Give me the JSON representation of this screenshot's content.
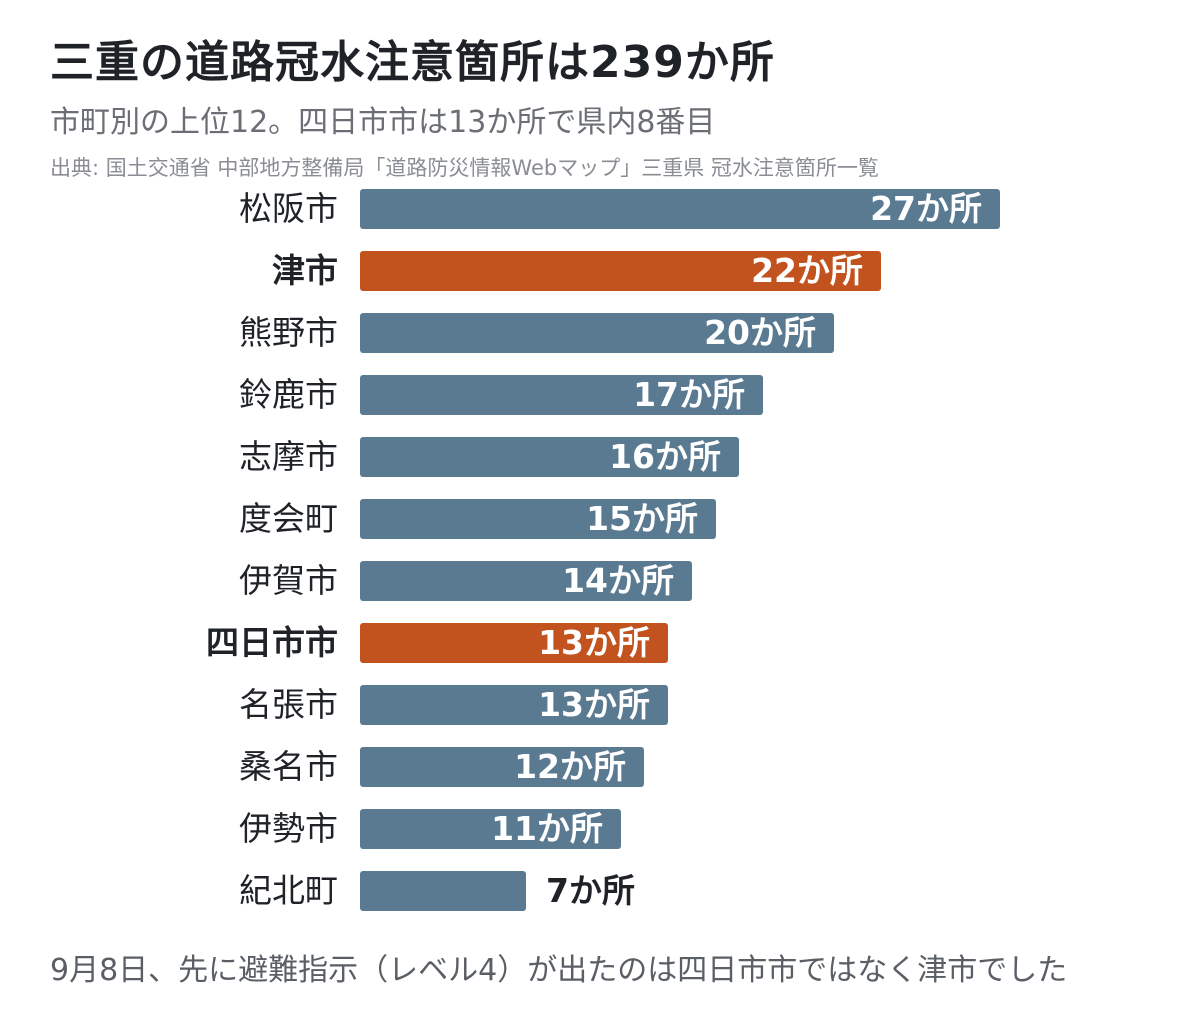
{
  "title": "三重の道路冠水注意箇所は239か所",
  "subtitle": "市町別の上位12。四日市市は13か所で県内8番目",
  "source": "出典: 国土交通省 中部地方整備局「道路防災情報Webマップ」三重県 冠水注意箇所一覧",
  "footnote": "9月8日、先に避難指示（レベル4）が出たのは四日市市ではなく津市でした",
  "colors": {
    "default": "#5a7a91",
    "highlight": "#c2531f"
  },
  "chart_data": {
    "type": "bar",
    "orientation": "horizontal",
    "categories": [
      "松阪市",
      "津市",
      "熊野市",
      "鈴鹿市",
      "志摩市",
      "度会町",
      "伊賀市",
      "四日市市",
      "名張市",
      "桑名市",
      "伊勢市",
      "紀北町"
    ],
    "values": [
      27,
      22,
      20,
      17,
      16,
      15,
      14,
      13,
      13,
      12,
      11,
      7
    ],
    "labels": [
      "27か所",
      "22か所",
      "20か所",
      "17か所",
      "16か所",
      "15か所",
      "14か所",
      "13か所",
      "13か所",
      "12か所",
      "11か所",
      "7か所"
    ],
    "highlight": [
      "津市",
      "四日市市"
    ],
    "xlim": [
      0,
      27
    ],
    "grid": false,
    "legend": "none"
  }
}
